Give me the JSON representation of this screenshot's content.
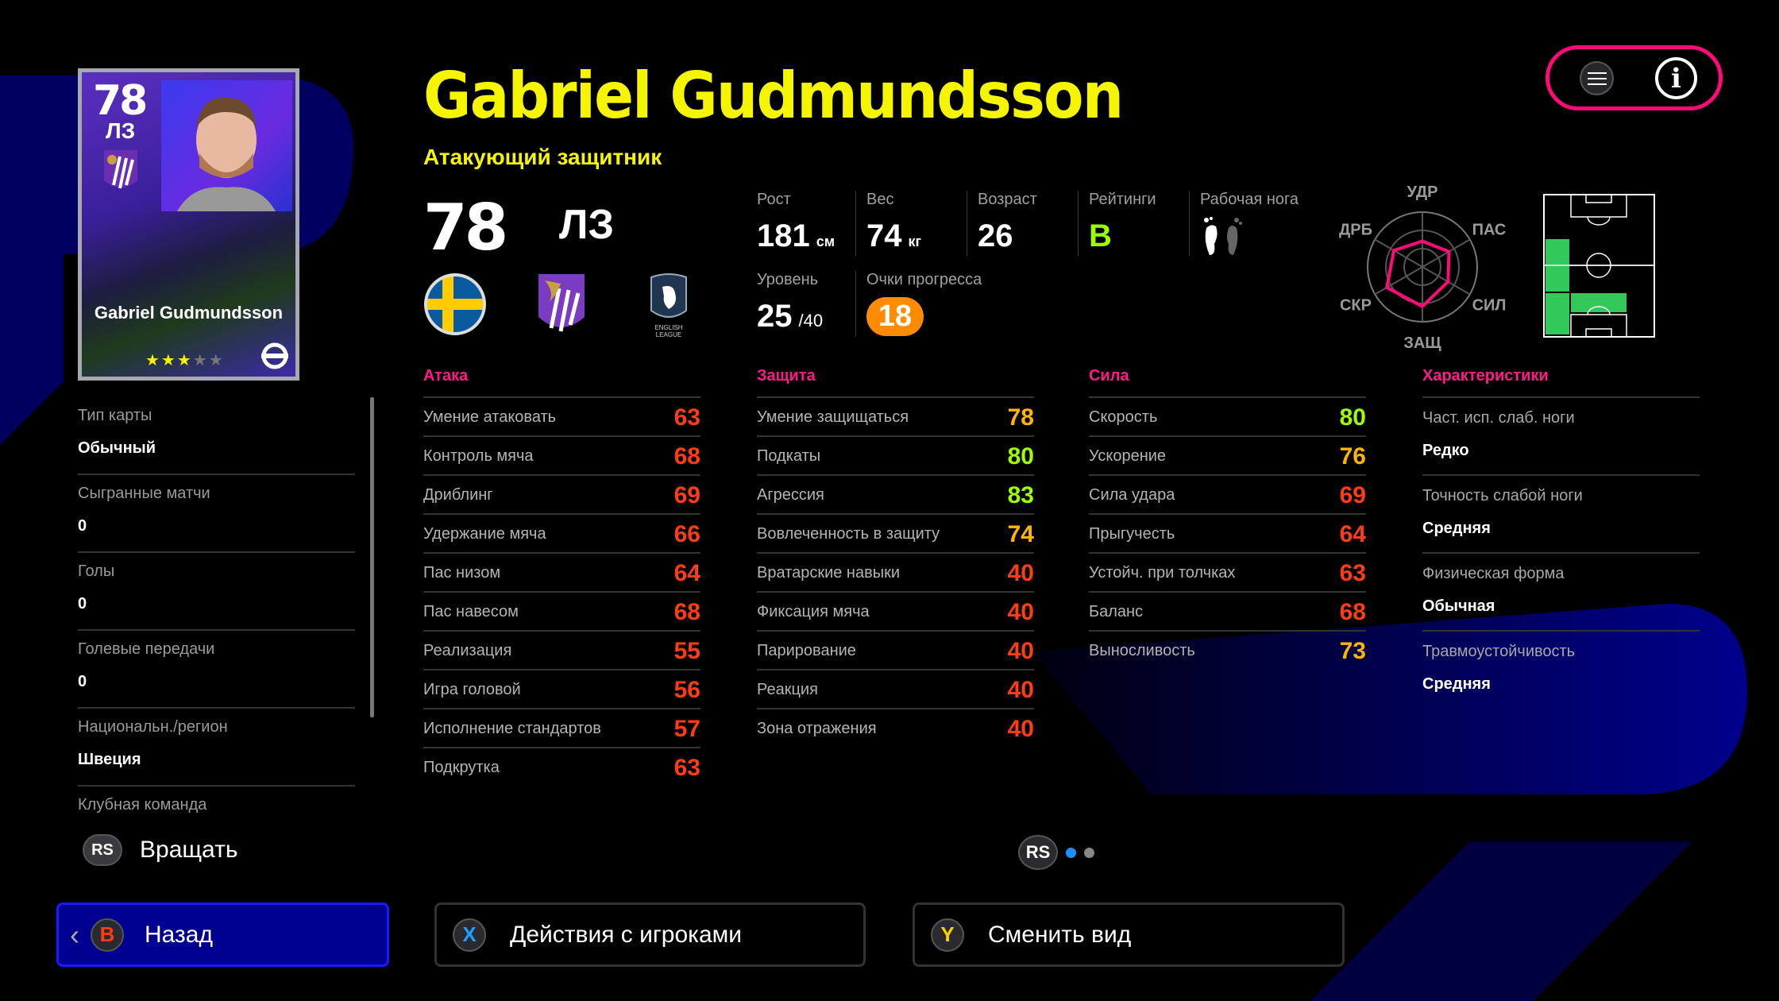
{
  "header": {
    "name": "Gabriel Gudmundsson",
    "position_full": "Атакующий защитник",
    "overall": "78",
    "position": "ЛЗ"
  },
  "card": {
    "overall": "78",
    "position": "ЛЗ",
    "name": "Gabriel Gudmundsson",
    "stars": 3,
    "max_stars": 5
  },
  "info": {
    "height": {
      "label": "Рост",
      "value": "181",
      "unit": "см"
    },
    "weight": {
      "label": "Вес",
      "value": "74",
      "unit": "кг"
    },
    "age": {
      "label": "Возраст",
      "value": "26"
    },
    "rating": {
      "label": "Рейтинги",
      "value": "B"
    },
    "foot": {
      "label": "Рабочая нога",
      "icon": "feet-icon"
    },
    "level": {
      "label": "Уровень",
      "value": "25",
      "max": "/40"
    },
    "progress": {
      "label": "Очки прогресса",
      "value": "18"
    }
  },
  "radar": {
    "labels": [
      "УДР",
      "ПАС",
      "СИЛ",
      "ЗАЩ",
      "СКР",
      "ДРБ"
    ],
    "values": [
      0.47,
      0.56,
      0.54,
      0.72,
      0.75,
      0.6
    ],
    "color": "#ff0a78"
  },
  "pitch": {
    "highlight_color": "#33c85a"
  },
  "stats": [
    {
      "title": "Атака",
      "rows": [
        {
          "label": "Умение атаковать",
          "value": "63"
        },
        {
          "label": "Контроль мяча",
          "value": "68"
        },
        {
          "label": "Дриблинг",
          "value": "69"
        },
        {
          "label": "Удержание мяча",
          "value": "66"
        },
        {
          "label": "Пас низом",
          "value": "64"
        },
        {
          "label": "Пас навесом",
          "value": "68"
        },
        {
          "label": "Реализация",
          "value": "55"
        },
        {
          "label": "Игра головой",
          "value": "56"
        },
        {
          "label": "Исполнение стандартов",
          "value": "57"
        },
        {
          "label": "Подкрутка",
          "value": "63"
        }
      ]
    },
    {
      "title": "Защита",
      "rows": [
        {
          "label": "Умение защищаться",
          "value": "78"
        },
        {
          "label": "Подкаты",
          "value": "80"
        },
        {
          "label": "Агрессия",
          "value": "83"
        },
        {
          "label": "Вовлеченность в защиту",
          "value": "74"
        },
        {
          "label": "Вратарские навыки",
          "value": "40"
        },
        {
          "label": "Фиксация мяча",
          "value": "40"
        },
        {
          "label": "Парирование",
          "value": "40"
        },
        {
          "label": "Реакция",
          "value": "40"
        },
        {
          "label": "Зона отражения",
          "value": "40"
        }
      ]
    },
    {
      "title": "Сила",
      "rows": [
        {
          "label": "Скорость",
          "value": "80"
        },
        {
          "label": "Ускорение",
          "value": "76"
        },
        {
          "label": "Сила удара",
          "value": "69"
        },
        {
          "label": "Прыгучесть",
          "value": "64"
        },
        {
          "label": "Устойч. при толчках",
          "value": "63"
        },
        {
          "label": "Баланс",
          "value": "68"
        },
        {
          "label": "Выносливость",
          "value": "73"
        }
      ]
    }
  ],
  "characteristics": {
    "title": "Характеристики",
    "rows": [
      {
        "label": "Част. исп. слаб. ноги",
        "value": "Редко"
      },
      {
        "label": "Точность слабой ноги",
        "value": "Средняя"
      },
      {
        "label": "Физическая форма",
        "value": "Обычная"
      },
      {
        "label": "Травмоустойчивость",
        "value": "Средняя"
      }
    ]
  },
  "left_panel": [
    {
      "label": "Тип карты",
      "value": "Обычный"
    },
    {
      "label": "Сыгранные матчи",
      "value": "0"
    },
    {
      "label": "Голы",
      "value": "0"
    },
    {
      "label": "Голевые передачи",
      "value": "0"
    },
    {
      "label": "Национальн./регион",
      "value": "Швеция"
    },
    {
      "label": "Клубная команда",
      "value": ""
    }
  ],
  "rotate": {
    "key": "RS",
    "label": "Вращать"
  },
  "pager": {
    "key": "RS",
    "pages": 2,
    "current": 1
  },
  "buttons": {
    "back": {
      "key": "B",
      "label": "Назад"
    },
    "actions": {
      "key": "X",
      "label": "Действия с игроками"
    },
    "view": {
      "key": "Y",
      "label": "Сменить вид"
    }
  },
  "colors": {
    "title": "#f5f500",
    "accent": "#ff0a78",
    "stat_low": "#ff3c14",
    "stat_mid": "#ffb400",
    "stat_high": "#9cff00",
    "back_btn": "#000090"
  }
}
